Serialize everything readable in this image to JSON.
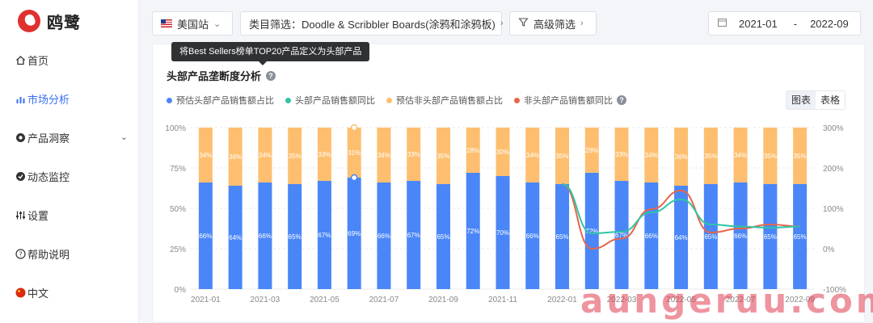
{
  "app": {
    "logo_text": "鸥鹭"
  },
  "sidebar": {
    "items": [
      {
        "label": "首页",
        "icon": "home-icon"
      },
      {
        "label": "市场分析",
        "icon": "bar-chart-icon",
        "active": true
      },
      {
        "label": "产品洞察",
        "icon": "insight-icon",
        "has_chevron": true
      },
      {
        "label": "动态监控",
        "icon": "monitor-icon"
      },
      {
        "label": "设置",
        "icon": "sliders-icon"
      },
      {
        "label": "帮助说明",
        "icon": "help-icon"
      },
      {
        "label": "中文",
        "icon": "china-flag-icon"
      }
    ]
  },
  "filters": {
    "site": "美国站",
    "category": "类目筛选：Doodle & Scribbler Boards(涂鸦和涂鸦板)",
    "advanced": "高级筛选",
    "date_start": "2021-01",
    "date_sep": "-",
    "date_end": "2022-09"
  },
  "tooltip": "将Best Sellers榜单TOP20产品定义为头部产品",
  "section": {
    "title": "头部产品垄断度分析"
  },
  "view_toggle": {
    "chart": "图表",
    "table": "表格"
  },
  "watermark": "aungeruu.com",
  "colors": {
    "blue": "#4a86f7",
    "orange": "#fdbf6f",
    "teal": "#2fc4a6",
    "red": "#e7664b",
    "accent": "#3b6ef5"
  },
  "chart_data": {
    "type": "bar",
    "categories": [
      "2021-01",
      "2021-02",
      "2021-03",
      "2021-04",
      "2021-05",
      "2021-06",
      "2021-07",
      "2021-08",
      "2021-09",
      "2021-10",
      "2021-11",
      "2021-12",
      "2022-01",
      "2022-02",
      "2022-03",
      "2022-04",
      "2022-05",
      "2022-06",
      "2022-07",
      "2022-08",
      "2022-09"
    ],
    "x_tick_labels": [
      "2021-01",
      "2021-03",
      "2021-05",
      "2021-07",
      "2021-09",
      "2021-11",
      "2022-01",
      "2022-03",
      "2022-05",
      "2022-07",
      "2022-09"
    ],
    "y_left_ticks": [
      "0%",
      "25%",
      "50%",
      "75%",
      "100%"
    ],
    "y_right_ticks": [
      "-100%",
      "0%",
      "100%",
      "200%",
      "300%"
    ],
    "y_left_range": [
      0,
      100
    ],
    "y_right_range": [
      -100,
      300
    ],
    "series": [
      {
        "name": "预估头部产品销售额占比",
        "type": "bar",
        "values": [
          66,
          64,
          66,
          65,
          67,
          69,
          66,
          67,
          65,
          72,
          70,
          66,
          65,
          72,
          67,
          66,
          64,
          65,
          66,
          65,
          65
        ]
      },
      {
        "name": "预估非头部产品销售额占比",
        "type": "bar",
        "values": [
          34,
          36,
          34,
          35,
          33,
          31,
          34,
          33,
          35,
          28,
          30,
          34,
          35,
          28,
          33,
          34,
          36,
          35,
          34,
          35,
          35
        ]
      },
      {
        "name": "头部产品销售额同比",
        "type": "line",
        "values": [
          null,
          null,
          null,
          null,
          null,
          null,
          null,
          null,
          null,
          null,
          null,
          null,
          160,
          38,
          42,
          90,
          122,
          60,
          55,
          52,
          55
        ]
      },
      {
        "name": "非头部产品销售额同比",
        "type": "line",
        "values": [
          null,
          null,
          null,
          null,
          null,
          null,
          null,
          null,
          null,
          null,
          null,
          null,
          160,
          0,
          25,
          98,
          144,
          40,
          50,
          60,
          55
        ]
      }
    ]
  }
}
